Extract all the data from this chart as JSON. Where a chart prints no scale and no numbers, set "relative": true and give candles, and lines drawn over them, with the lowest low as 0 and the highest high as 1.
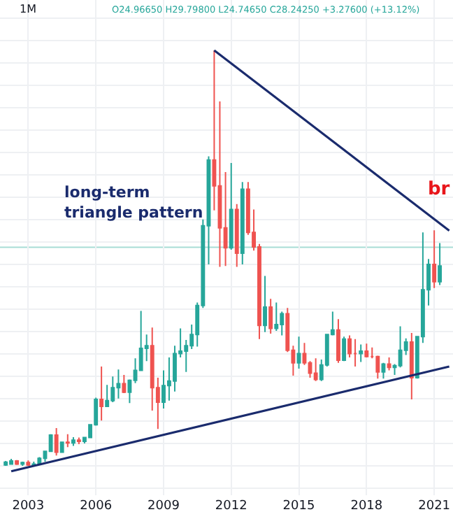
{
  "chart_data": {
    "type": "candlestick",
    "relative": true,
    "grid": true,
    "x": [
      "2002-01",
      "2002-04",
      "2002-07",
      "2002-10",
      "2003-01",
      "2003-04",
      "2003-07",
      "2003-10",
      "2004-01",
      "2004-04",
      "2004-07",
      "2004-10",
      "2005-01",
      "2005-04",
      "2005-07",
      "2005-10",
      "2006-01",
      "2006-04",
      "2006-07",
      "2006-10",
      "2007-01",
      "2007-04",
      "2007-07",
      "2007-10",
      "2008-01",
      "2008-04",
      "2008-07",
      "2008-10",
      "2009-01",
      "2009-04",
      "2009-07",
      "2009-10",
      "2010-01",
      "2010-04",
      "2010-07",
      "2010-10",
      "2011-01",
      "2011-04",
      "2011-07",
      "2011-10",
      "2012-01",
      "2012-04",
      "2012-07",
      "2012-10",
      "2013-01",
      "2013-04",
      "2013-07",
      "2013-10",
      "2014-01",
      "2014-04",
      "2014-07",
      "2014-10",
      "2015-01",
      "2015-04",
      "2015-07",
      "2015-10",
      "2016-01",
      "2016-04",
      "2016-07",
      "2016-10",
      "2017-01",
      "2017-04",
      "2017-07",
      "2017-10",
      "2018-01",
      "2018-04",
      "2018-07",
      "2018-10",
      "2019-01",
      "2019-04",
      "2019-07",
      "2019-10",
      "2020-01",
      "2020-04",
      "2020-07",
      "2020-10",
      "2021-01",
      "2021-04"
    ],
    "ohlc": [
      [
        0.002,
        0.012,
        0,
        0.009
      ],
      [
        0.004,
        0.017,
        0.003,
        0.012
      ],
      [
        0.012,
        0.014,
        0.002,
        0.004
      ],
      [
        0.004,
        0.01,
        0,
        0.008
      ],
      [
        0.008,
        0.013,
        0,
        0.002
      ],
      [
        0.002,
        0.01,
        0,
        0.004
      ],
      [
        0.004,
        0.021,
        0.003,
        0.018
      ],
      [
        0.018,
        0.036,
        0.01,
        0.035
      ],
      [
        0.035,
        0.076,
        0.035,
        0.074
      ],
      [
        0.074,
        0.091,
        0.025,
        0.033
      ],
      [
        0.033,
        0.058,
        0.032,
        0.057
      ],
      [
        0.057,
        0.076,
        0.045,
        0.055
      ],
      [
        0.055,
        0.069,
        0.048,
        0.062
      ],
      [
        0.062,
        0.068,
        0.052,
        0.059
      ],
      [
        0.059,
        0.07,
        0.054,
        0.068
      ],
      [
        0.068,
        0.1,
        0.067,
        0.099
      ],
      [
        0.099,
        0.164,
        0.097,
        0.16
      ],
      [
        0.16,
        0.239,
        0.109,
        0.143
      ],
      [
        0.143,
        0.195,
        0.142,
        0.157
      ],
      [
        0.157,
        0.215,
        0.153,
        0.188
      ],
      [
        0.188,
        0.232,
        0.162,
        0.198
      ],
      [
        0.198,
        0.219,
        0.175,
        0.177
      ],
      [
        0.177,
        0.208,
        0.151,
        0.206
      ],
      [
        0.206,
        0.259,
        0.199,
        0.23
      ],
      [
        0.23,
        0.373,
        0.228,
        0.283
      ],
      [
        0.283,
        0.316,
        0.252,
        0.289
      ],
      [
        0.289,
        0.333,
        0.133,
        0.188
      ],
      [
        0.188,
        0.212,
        0.089,
        0.153
      ],
      [
        0.153,
        0.23,
        0.138,
        0.193
      ],
      [
        0.193,
        0.261,
        0.157,
        0.204
      ],
      [
        0.204,
        0.289,
        0.179,
        0.27
      ],
      [
        0.27,
        0.331,
        0.261,
        0.276
      ],
      [
        0.276,
        0.303,
        0.226,
        0.289
      ],
      [
        0.289,
        0.34,
        0.281,
        0.316
      ],
      [
        0.316,
        0.393,
        0.287,
        0.386
      ],
      [
        0.386,
        0.593,
        0.38,
        0.578
      ],
      [
        0.578,
        0.745,
        0.485,
        0.736
      ],
      [
        0.736,
        1.0,
        0.615,
        0.674
      ],
      [
        0.674,
        0.877,
        0.479,
        0.573
      ],
      [
        0.573,
        0.707,
        0.481,
        0.525
      ],
      [
        0.525,
        0.729,
        0.52,
        0.617
      ],
      [
        0.617,
        0.63,
        0.479,
        0.512
      ],
      [
        0.512,
        0.683,
        0.485,
        0.666
      ],
      [
        0.666,
        0.683,
        0.556,
        0.562
      ],
      [
        0.562,
        0.617,
        0.518,
        0.527
      ],
      [
        0.527,
        0.534,
        0.305,
        0.338
      ],
      [
        0.338,
        0.457,
        0.322,
        0.382
      ],
      [
        0.382,
        0.402,
        0.318,
        0.331
      ],
      [
        0.331,
        0.393,
        0.325,
        0.34
      ],
      [
        0.34,
        0.371,
        0.314,
        0.366
      ],
      [
        0.366,
        0.38,
        0.274,
        0.278
      ],
      [
        0.278,
        0.289,
        0.217,
        0.248
      ],
      [
        0.248,
        0.311,
        0.234,
        0.27
      ],
      [
        0.27,
        0.296,
        0.243,
        0.248
      ],
      [
        0.248,
        0.252,
        0.212,
        0.223
      ],
      [
        0.223,
        0.259,
        0.204,
        0.208
      ],
      [
        0.208,
        0.256,
        0.204,
        0.243
      ],
      [
        0.243,
        0.316,
        0.239,
        0.316
      ],
      [
        0.316,
        0.371,
        0.314,
        0.327
      ],
      [
        0.327,
        0.353,
        0.248,
        0.254
      ],
      [
        0.254,
        0.311,
        0.252,
        0.305
      ],
      [
        0.305,
        0.314,
        0.261,
        0.27
      ],
      [
        0.27,
        0.305,
        0.239,
        0.27
      ],
      [
        0.27,
        0.292,
        0.25,
        0.276
      ],
      [
        0.276,
        0.294,
        0.261,
        0.263
      ],
      [
        0.263,
        0.285,
        0.259,
        0.263
      ],
      [
        0.263,
        0.265,
        0.21,
        0.226
      ],
      [
        0.226,
        0.248,
        0.21,
        0.245
      ],
      [
        0.245,
        0.261,
        0.23,
        0.237
      ],
      [
        0.237,
        0.245,
        0.219,
        0.241
      ],
      [
        0.241,
        0.336,
        0.237,
        0.278
      ],
      [
        0.278,
        0.307,
        0.267,
        0.298
      ],
      [
        0.298,
        0.32,
        0.16,
        0.212
      ],
      [
        0.212,
        0.311,
        0.21,
        0.311
      ],
      [
        0.311,
        0.562,
        0.296,
        0.424
      ],
      [
        0.424,
        0.498,
        0.386,
        0.485
      ],
      [
        0.485,
        0.567,
        0.428,
        0.443
      ],
      [
        0.443,
        0.536,
        0.435,
        0.481
      ]
    ],
    "series": [
      {
        "type": "line",
        "color": "#1a2b6d",
        "x": [
          "2011-04",
          "2021-09"
        ],
        "values": [
          1.0,
          0.566
        ]
      },
      {
        "type": "line",
        "color": "#1a2b6d",
        "x": [
          "2002-04",
          "2021-09"
        ],
        "values": [
          -0.013,
          0.239
        ]
      }
    ],
    "xlim": [
      "2001-10",
      "2021-11"
    ],
    "xticks": [
      "2003",
      "2006",
      "2009",
      "2012",
      "2015",
      "2018",
      "2021"
    ],
    "ref_lines": [
      {
        "axis": "y",
        "value": 0.526,
        "color": "#a8ddd6"
      }
    ],
    "annotations": [
      "O24.96650 H29.79800 L24.74650 C28.24250 +3.27600 (+13.12%)",
      "1M",
      "long-term\ntriangle pattern",
      "br"
    ]
  }
}
